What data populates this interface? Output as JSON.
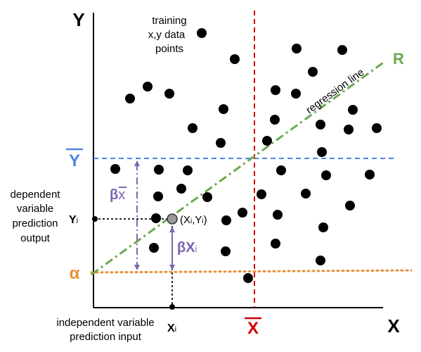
{
  "axis": {
    "y_label": "Y",
    "x_label": "X"
  },
  "legend": {
    "points_line1": "training",
    "points_line2": "x,y data",
    "points_line3": "points"
  },
  "lines": {
    "regression_label": "regression line",
    "regression_symbol": "R",
    "mean_y_symbol": "Y",
    "mean_x_symbol": "X",
    "intercept_symbol": "α"
  },
  "annotations": {
    "dependent_line1": "dependent",
    "dependent_line2": "variable",
    "dependent_line3": "prediction",
    "dependent_line4": "output",
    "yi_base": "Y",
    "yi_sub": "i",
    "xi_base": "X",
    "xi_sub": "i",
    "independent_line1": "independent variable",
    "independent_line2": "prediction input",
    "point_open": "(X",
    "point_sub1": "i",
    "point_mid": ",Y",
    "point_sub2": "i",
    "point_close": ")",
    "beta_xbar_beta": "β",
    "beta_xbar_x": "x",
    "beta_xi_beta": "βX",
    "beta_xi_sub": "i"
  },
  "colors": {
    "axis": "#000000",
    "mean_y": "#4a86e8",
    "mean_x": "#cc0000",
    "intercept": "#e69138",
    "regression": "#6aa84f",
    "beta": "#7d64b4",
    "highlight_point": "#999999"
  },
  "points": [
    [
      287,
      47
    ],
    [
      334,
      84
    ],
    [
      422,
      69
    ],
    [
      487,
      71
    ],
    [
      210,
      123
    ],
    [
      185,
      140
    ],
    [
      241,
      133
    ],
    [
      445,
      102
    ],
    [
      421,
      133
    ],
    [
      318,
      155
    ],
    [
      392,
      128
    ],
    [
      502,
      156
    ],
    [
      274,
      182
    ],
    [
      391,
      170
    ],
    [
      456,
      177
    ],
    [
      496,
      184
    ],
    [
      536,
      182
    ],
    [
      314,
      203
    ],
    [
      380,
      200
    ],
    [
      458,
      216
    ],
    [
      164,
      240
    ],
    [
      226,
      241
    ],
    [
      267,
      242
    ],
    [
      400,
      242
    ],
    [
      464,
      249
    ],
    [
      526,
      248
    ],
    [
      258,
      268
    ],
    [
      225,
      279
    ],
    [
      295,
      280
    ],
    [
      435,
      275
    ],
    [
      372,
      276
    ],
    [
      498,
      292
    ],
    [
      222,
      310
    ],
    [
      345,
      302
    ],
    [
      395,
      305
    ],
    [
      322,
      313
    ],
    [
      460,
      323
    ],
    [
      219,
      352
    ],
    [
      321,
      357
    ],
    [
      392,
      346
    ],
    [
      456,
      370
    ],
    [
      353,
      395
    ]
  ]
}
